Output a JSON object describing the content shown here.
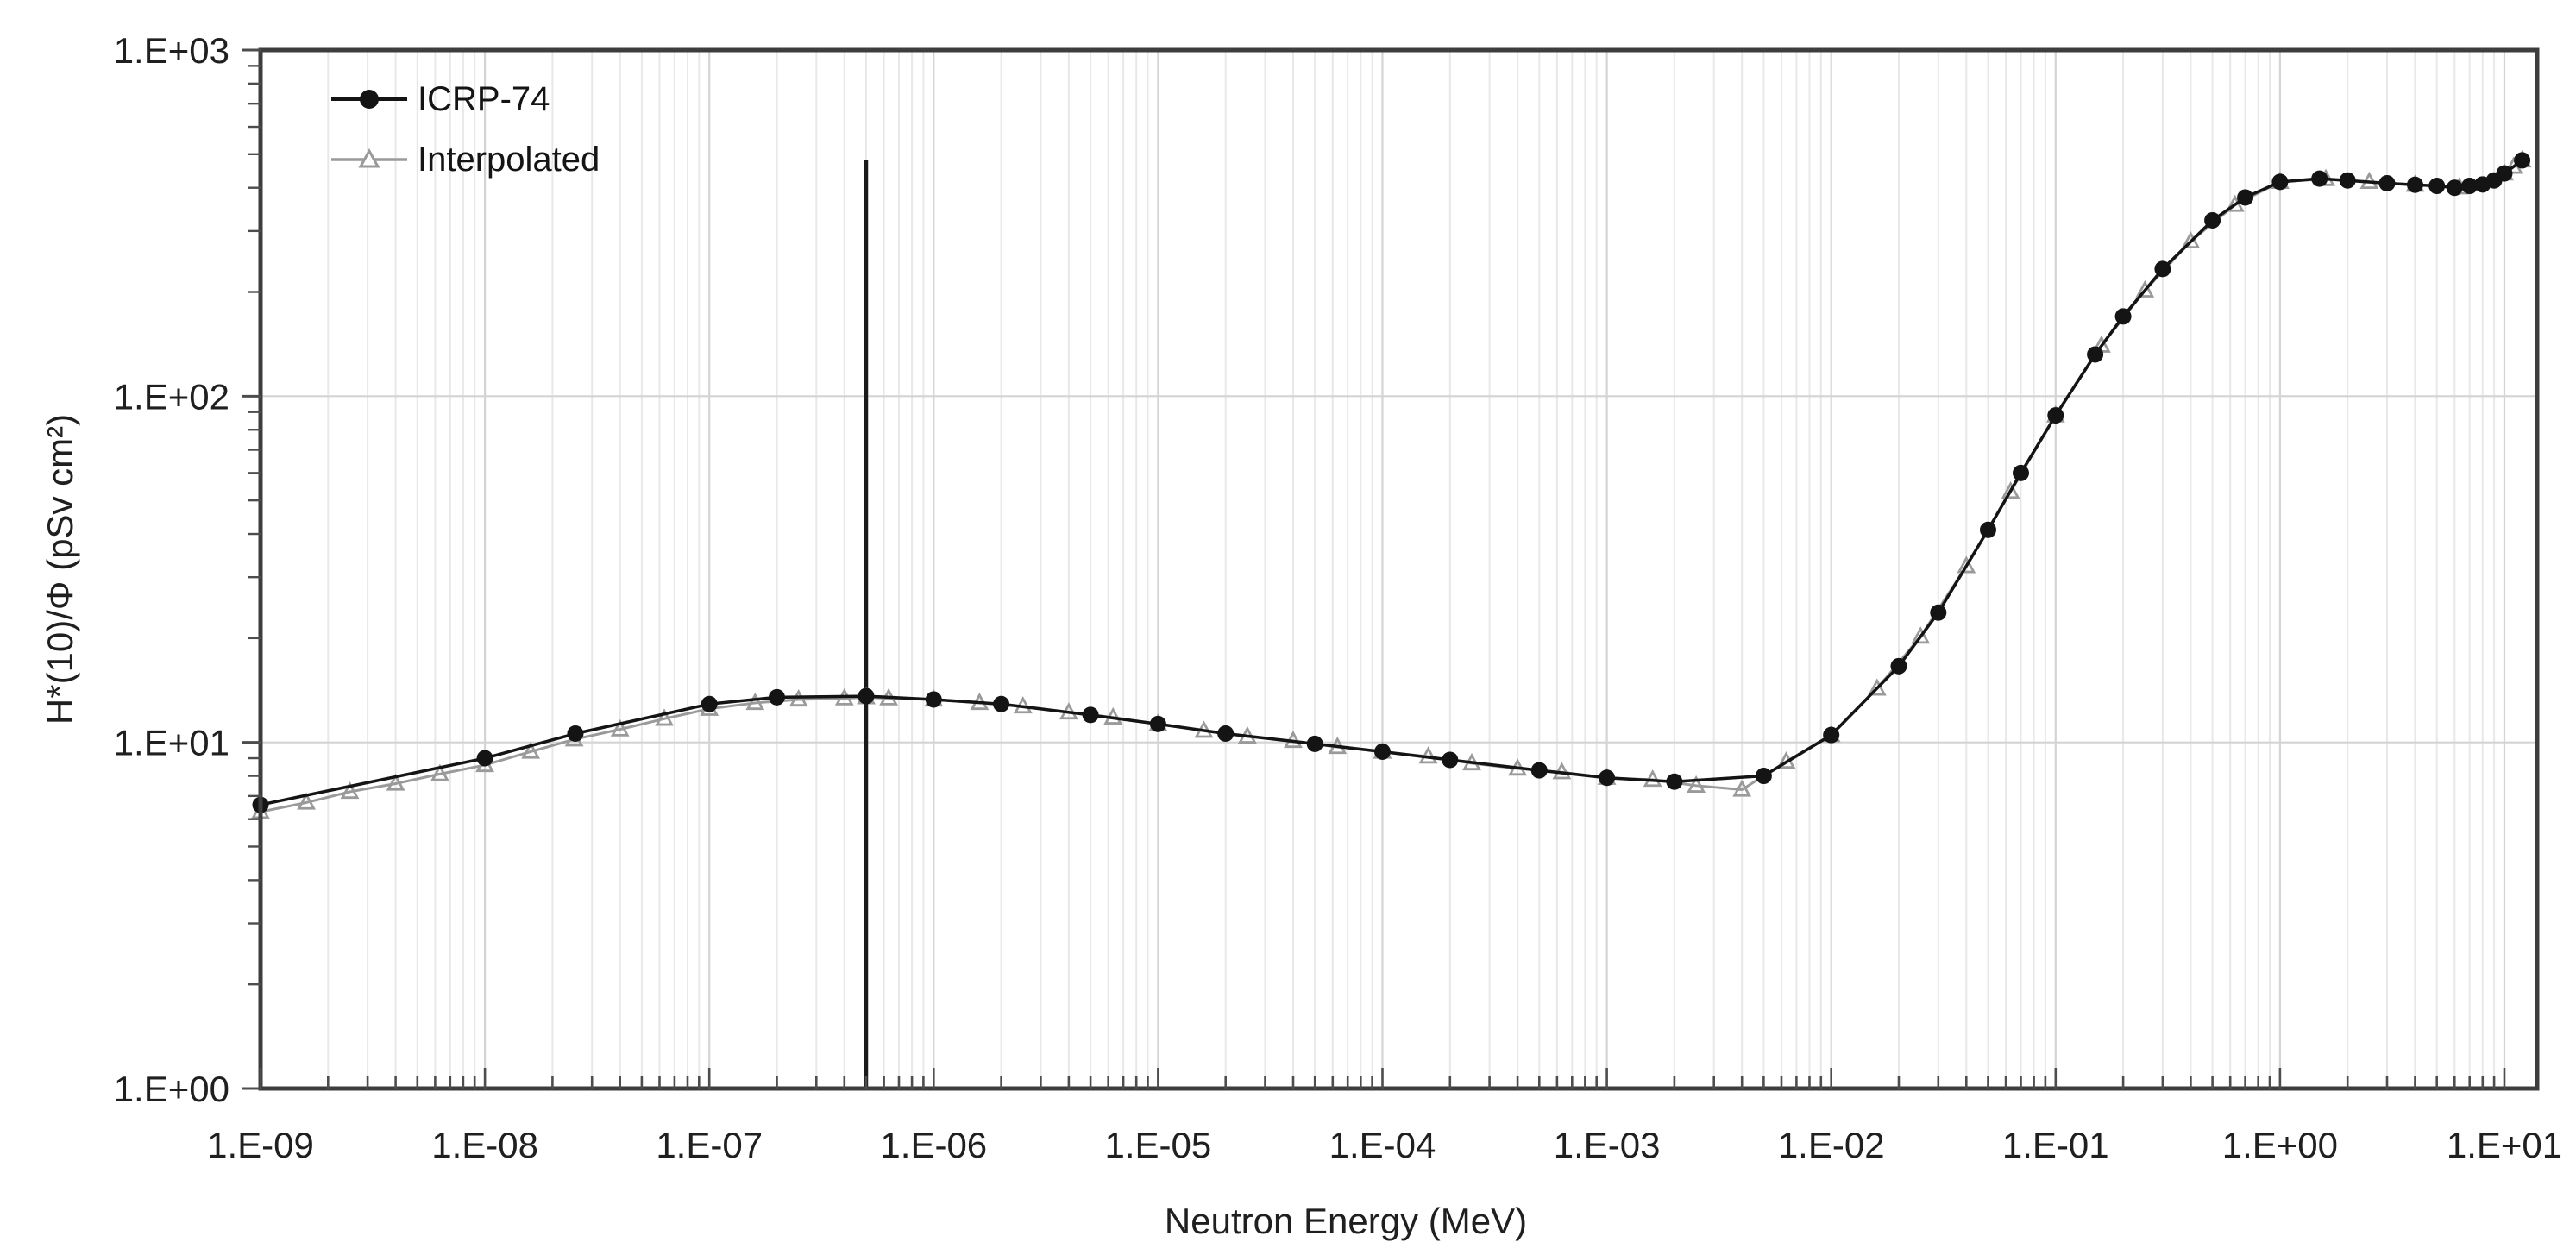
{
  "chart_data": {
    "type": "line",
    "title": "",
    "xlabel": "Neutron Energy (MeV)",
    "ylabel": "H*(10)/Φ (pSv cm²)",
    "x_scale": "log",
    "y_scale": "log",
    "xlim": [
      1e-09,
      14.0
    ],
    "ylim": [
      1,
      1000
    ],
    "x_ticks": [
      1e-09,
      1e-08,
      1e-07,
      1e-06,
      1e-05,
      0.0001,
      0.001,
      0.01,
      0.1,
      1.0,
      10.0
    ],
    "x_tick_labels": [
      "1.E-09",
      "1.E-08",
      "1.E-07",
      "1.E-06",
      "1.E-05",
      "1.E-04",
      "1.E-03",
      "1.E-02",
      "1.E-01",
      "1.E+00",
      "1.E+01"
    ],
    "y_ticks": [
      1,
      10,
      100,
      1000
    ],
    "y_tick_labels": [
      "1.E+00",
      "1.E+01",
      "1.E+02",
      "1.E+03"
    ],
    "grid": {
      "vertical_minor": true,
      "vertical_major": true,
      "horizontal_major": true,
      "horizontal_minor": false
    },
    "legend": {
      "position": "top-left"
    },
    "colors": {
      "series_icrp": "#141414",
      "series_interpolated": "#9a9a9a",
      "grid_major": "#d4d4d4",
      "grid_minor": "#e8e8e8",
      "axis_frame": "#3d3d3d",
      "tick": "#4d4d4d",
      "reference_line": "#1a1a1a"
    },
    "annotations": {
      "vline": {
        "x": 5e-07,
        "y_from": 1,
        "y_to": 480
      }
    },
    "series": [
      {
        "name": "ICRP-74",
        "marker": "filled-circle",
        "color": "#141414",
        "points": [
          [
            1e-09,
            6.6
          ],
          [
            1e-08,
            9.0
          ],
          [
            2.53e-08,
            10.6
          ],
          [
            1e-07,
            12.9
          ],
          [
            2e-07,
            13.5
          ],
          [
            5e-07,
            13.6
          ],
          [
            1e-06,
            13.3
          ],
          [
            2e-06,
            12.9
          ],
          [
            5e-06,
            12.0
          ],
          [
            1e-05,
            11.3
          ],
          [
            2e-05,
            10.6
          ],
          [
            5e-05,
            9.9
          ],
          [
            0.0001,
            9.4
          ],
          [
            0.0002,
            8.9
          ],
          [
            0.0005,
            8.3
          ],
          [
            0.001,
            7.9
          ],
          [
            0.002,
            7.7
          ],
          [
            0.005,
            8.0
          ],
          [
            0.01,
            10.5
          ],
          [
            0.02,
            16.6
          ],
          [
            0.03,
            23.7
          ],
          [
            0.05,
            41.1
          ],
          [
            0.07,
            60.0
          ],
          [
            0.1,
            88.0
          ],
          [
            0.15,
            132
          ],
          [
            0.2,
            170
          ],
          [
            0.3,
            233
          ],
          [
            0.5,
            322
          ],
          [
            0.7,
            375
          ],
          [
            1.0,
            416
          ],
          [
            1.5,
            425
          ],
          [
            2.0,
            420
          ],
          [
            3.0,
            412
          ],
          [
            4.0,
            408
          ],
          [
            5.0,
            405
          ],
          [
            6.0,
            400
          ],
          [
            7.0,
            405
          ],
          [
            8.0,
            409
          ],
          [
            9.0,
            420
          ],
          [
            10.0,
            440
          ],
          [
            12.0,
            480
          ]
        ]
      },
      {
        "name": "Interpolated",
        "marker": "open-triangle",
        "color": "#9a9a9a",
        "points": [
          [
            1e-09,
            6.3
          ],
          [
            1.6e-09,
            6.7
          ],
          [
            2.5e-09,
            7.2
          ],
          [
            4e-09,
            7.6
          ],
          [
            6.3e-09,
            8.1
          ],
          [
            1e-08,
            8.6
          ],
          [
            1.6e-08,
            9.4
          ],
          [
            2.5e-08,
            10.2
          ],
          [
            4e-08,
            10.9
          ],
          [
            6.3e-08,
            11.7
          ],
          [
            1e-07,
            12.5
          ],
          [
            1.6e-07,
            13.0
          ],
          [
            2.5e-07,
            13.3
          ],
          [
            4e-07,
            13.4
          ],
          [
            5e-07,
            13.5
          ],
          [
            6.3e-07,
            13.4
          ],
          [
            1e-06,
            13.3
          ],
          [
            1.6e-06,
            13.0
          ],
          [
            2.5e-06,
            12.7
          ],
          [
            4e-06,
            12.2
          ],
          [
            6.3e-06,
            11.8
          ],
          [
            1e-05,
            11.3
          ],
          [
            1.6e-05,
            10.8
          ],
          [
            2.5e-05,
            10.4
          ],
          [
            4e-05,
            10.1
          ],
          [
            6.3e-05,
            9.7
          ],
          [
            0.0001,
            9.4
          ],
          [
            0.00016,
            9.1
          ],
          [
            0.00025,
            8.7
          ],
          [
            0.0004,
            8.4
          ],
          [
            0.00063,
            8.2
          ],
          [
            0.001,
            7.9
          ],
          [
            0.0016,
            7.8
          ],
          [
            0.0025,
            7.5
          ],
          [
            0.004,
            7.3
          ],
          [
            0.0063,
            8.8
          ],
          [
            0.01,
            10.5
          ],
          [
            0.016,
            14.3
          ],
          [
            0.025,
            20.2
          ],
          [
            0.04,
            32.3
          ],
          [
            0.063,
            53
          ],
          [
            0.1,
            88
          ],
          [
            0.16,
            140
          ],
          [
            0.25,
            202
          ],
          [
            0.4,
            280
          ],
          [
            0.63,
            357
          ],
          [
            1.0,
            416
          ],
          [
            1.6,
            424
          ],
          [
            2.5,
            416
          ],
          [
            4.0,
            408
          ],
          [
            6.3,
            401
          ],
          [
            10.0,
            440
          ],
          [
            11.0,
            460
          ],
          [
            12.0,
            480
          ]
        ]
      }
    ]
  }
}
